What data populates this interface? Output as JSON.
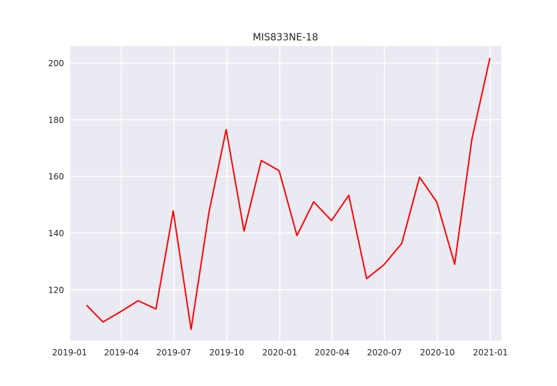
{
  "chart_data": {
    "type": "line",
    "title": "MIS833NE-18",
    "xlabel": "",
    "ylabel": "",
    "grid": true,
    "background_color": "#eaeaf2",
    "grid_color": "#ffffff",
    "line_color": "#ff0000",
    "x_ticks": [
      "2019-01",
      "2019-04",
      "2019-07",
      "2019-10",
      "2020-01",
      "2020-04",
      "2020-07",
      "2020-10",
      "2021-01"
    ],
    "y_ticks": [
      120,
      140,
      160,
      180,
      200
    ],
    "xlim": [
      "2019-01-01",
      "2021-01-20"
    ],
    "ylim": [
      102,
      206
    ],
    "series": [
      {
        "x": [
          "2019-01-31",
          "2019-02-28",
          "2019-03-31",
          "2019-04-30",
          "2019-05-31",
          "2019-06-30",
          "2019-07-31",
          "2019-08-31",
          "2019-09-30",
          "2019-10-31",
          "2019-11-30",
          "2019-12-31",
          "2020-01-31",
          "2020-02-29",
          "2020-03-31",
          "2020-04-30",
          "2020-05-31",
          "2020-06-30",
          "2020-07-31",
          "2020-08-31",
          "2020-09-30",
          "2020-10-31",
          "2020-11-30",
          "2020-12-31"
        ],
        "values": [
          114.4,
          108.6,
          112.3,
          116.1,
          113.2,
          147.8,
          106.0,
          147.2,
          176.5,
          140.7,
          165.6,
          162.0,
          139.1,
          151.0,
          144.4,
          153.3,
          123.9,
          128.8,
          136.3,
          159.7,
          150.9,
          129.0,
          173.2,
          201.6
        ]
      }
    ]
  }
}
